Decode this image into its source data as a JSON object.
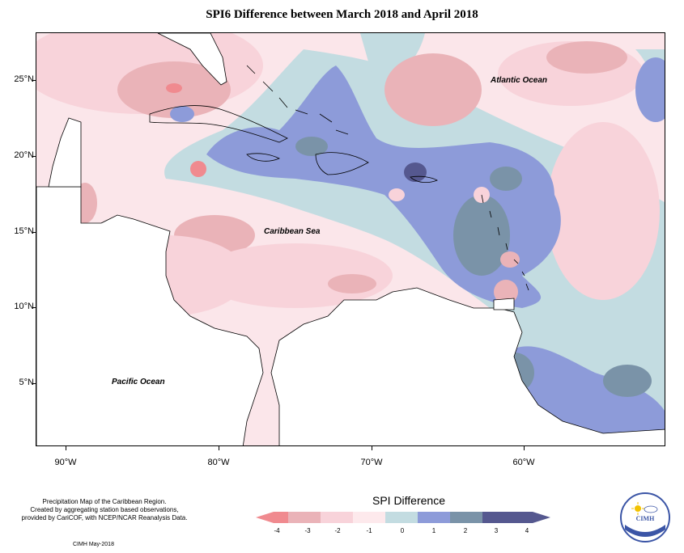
{
  "title": "SPI6 Difference between March 2018 and April 2018",
  "map": {
    "latitude_labels": [
      "25°N",
      "20°N",
      "15°N",
      "10°N",
      "5°N"
    ],
    "longitude_labels": [
      "90°W",
      "80°W",
      "70°W",
      "60°W"
    ],
    "region_labels": {
      "atlantic": "Atlantic Ocean",
      "caribbean": "Caribbean Sea",
      "pacific": "Pacific Ocean"
    }
  },
  "legend": {
    "title": "SPI Difference",
    "ticks": [
      "-4",
      "-3",
      "-2",
      "-1",
      "0",
      "1",
      "2",
      "3",
      "4"
    ],
    "colors": [
      "#f08a8f",
      "#eab3b8",
      "#f8d3da",
      "#fde9ec",
      "#c3dce1",
      "#8d9bd9",
      "#7a93a8",
      "#55588f"
    ]
  },
  "credits": {
    "line1": "Precipitation Map of the Caribbean Region.",
    "line2": "Created by aggregating station based observations,",
    "line3": "provided by CariCOF, with NCEP/NCAR Reanalysis Data.",
    "footer": "CIMH May-2018"
  },
  "logo": {
    "text": "CIMH"
  }
}
